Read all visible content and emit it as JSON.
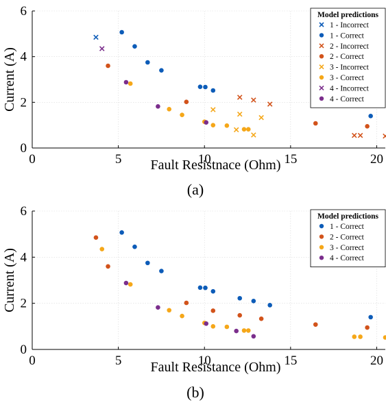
{
  "colors": {
    "1": "#0d5cb8",
    "2": "#d2531b",
    "3": "#f5a719",
    "4": "#7b2e8c"
  },
  "chart_data": [
    {
      "type": "scatter",
      "panel_label": "(a)",
      "title": "",
      "xlabel": "Fault Resistnace (Ohm)",
      "ylabel": "Current (A)",
      "xlim": [
        0,
        20.5
      ],
      "ylim": [
        0,
        6
      ],
      "xticks": [
        "0",
        "5",
        "10",
        "15",
        "20"
      ],
      "yticks": [
        "0",
        "2",
        "4",
        "6"
      ],
      "grid": true,
      "legend": {
        "title": "Model predictions",
        "position": "top-right"
      },
      "series": [
        {
          "name": "1 - Incorrect",
          "class": "1",
          "marker": "x",
          "points": [
            [
              3.7,
              4.85
            ]
          ]
        },
        {
          "name": "1 - Correct",
          "class": "1",
          "marker": "o",
          "points": [
            [
              5.2,
              5.07
            ],
            [
              5.95,
              4.45
            ],
            [
              6.7,
              3.75
            ],
            [
              7.5,
              3.4
            ],
            [
              9.75,
              2.68
            ],
            [
              10.05,
              2.67
            ],
            [
              10.5,
              2.52
            ],
            [
              19.65,
              1.4
            ]
          ]
        },
        {
          "name": "2 - Incorrect",
          "class": "2",
          "marker": "x",
          "points": [
            [
              12.05,
              2.22
            ],
            [
              12.85,
              2.1
            ],
            [
              13.8,
              1.92
            ],
            [
              18.7,
              0.55
            ],
            [
              19.05,
              0.55
            ],
            [
              20.5,
              0.52
            ]
          ]
        },
        {
          "name": "2 - Correct",
          "class": "2",
          "marker": "o",
          "points": [
            [
              4.4,
              3.6
            ],
            [
              8.95,
              2.02
            ],
            [
              16.45,
              1.08
            ],
            [
              19.45,
              0.95
            ]
          ]
        },
        {
          "name": "3 - Incorrect",
          "class": "3",
          "marker": "x",
          "points": [
            [
              10.5,
              1.68
            ],
            [
              12.05,
              1.48
            ],
            [
              13.3,
              1.33
            ],
            [
              11.85,
              0.8
            ],
            [
              12.85,
              0.57
            ]
          ]
        },
        {
          "name": "3 - Correct",
          "class": "3",
          "marker": "o",
          "points": [
            [
              5.7,
              2.82
            ],
            [
              7.95,
              1.7
            ],
            [
              8.7,
              1.45
            ],
            [
              10.0,
              1.15
            ],
            [
              10.5,
              1.0
            ],
            [
              11.3,
              0.98
            ],
            [
              12.3,
              0.82
            ],
            [
              12.55,
              0.82
            ]
          ]
        },
        {
          "name": "4 - Incorrect",
          "class": "4",
          "marker": "x",
          "points": [
            [
              4.05,
              4.35
            ]
          ]
        },
        {
          "name": "4 - Correct",
          "class": "4",
          "marker": "o",
          "points": [
            [
              5.45,
              2.88
            ],
            [
              7.3,
              1.82
            ],
            [
              10.1,
              1.12
            ]
          ]
        }
      ]
    },
    {
      "type": "scatter",
      "panel_label": "(b)",
      "title": "",
      "xlabel": "Fault Resistance (Ohm)",
      "ylabel": "Current (A)",
      "xlim": [
        0,
        20.5
      ],
      "ylim": [
        0,
        6
      ],
      "xticks": [
        "0",
        "5",
        "10",
        "15",
        "20"
      ],
      "yticks": [
        "0",
        "2",
        "4",
        "6"
      ],
      "grid": true,
      "legend": {
        "title": "Model predictions",
        "position": "top-right"
      },
      "series": [
        {
          "name": "1 - Correct",
          "class": "1",
          "marker": "o",
          "points": [
            [
              5.2,
              5.07
            ],
            [
              5.95,
              4.45
            ],
            [
              6.7,
              3.75
            ],
            [
              7.5,
              3.4
            ],
            [
              9.75,
              2.68
            ],
            [
              10.05,
              2.67
            ],
            [
              10.5,
              2.52
            ],
            [
              12.05,
              2.22
            ],
            [
              12.85,
              2.1
            ],
            [
              13.8,
              1.92
            ],
            [
              19.65,
              1.4
            ]
          ]
        },
        {
          "name": "2 - Correct",
          "class": "2",
          "marker": "o",
          "points": [
            [
              3.7,
              4.85
            ],
            [
              4.4,
              3.6
            ],
            [
              8.95,
              2.02
            ],
            [
              10.5,
              1.68
            ],
            [
              12.05,
              1.48
            ],
            [
              13.3,
              1.33
            ],
            [
              16.45,
              1.08
            ],
            [
              19.45,
              0.95
            ]
          ]
        },
        {
          "name": "3 - Correct",
          "class": "3",
          "marker": "o",
          "points": [
            [
              4.05,
              4.35
            ],
            [
              5.7,
              2.82
            ],
            [
              7.95,
              1.7
            ],
            [
              8.7,
              1.45
            ],
            [
              10.0,
              1.15
            ],
            [
              10.5,
              1.0
            ],
            [
              11.3,
              0.98
            ],
            [
              12.3,
              0.82
            ],
            [
              12.55,
              0.82
            ],
            [
              18.7,
              0.55
            ],
            [
              19.05,
              0.55
            ],
            [
              20.5,
              0.52
            ]
          ]
        },
        {
          "name": "4 - Correct",
          "class": "4",
          "marker": "o",
          "points": [
            [
              5.45,
              2.88
            ],
            [
              7.3,
              1.82
            ],
            [
              10.1,
              1.12
            ],
            [
              11.85,
              0.8
            ],
            [
              12.85,
              0.57
            ]
          ]
        }
      ]
    }
  ]
}
